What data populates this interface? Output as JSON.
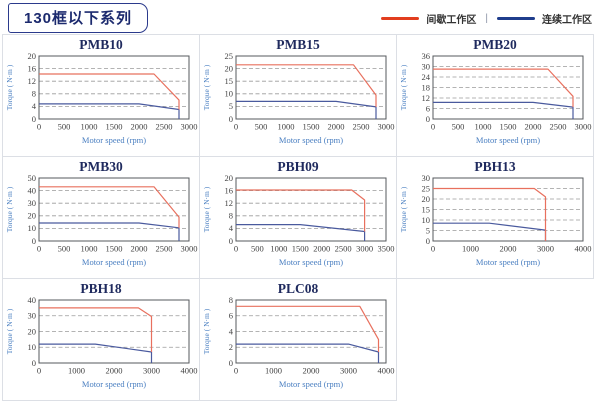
{
  "header": {
    "title": "130框以下系列",
    "legend": {
      "intermittent": "间歇工作区",
      "separator": "|",
      "continuous": "连续工作区"
    }
  },
  "colors": {
    "legend_intermittent": "#e23d1e",
    "legend_continuous": "#1f3d8c",
    "line_intermittent": "#e8705e",
    "line_continuous": "#4a5a9e",
    "axis_label": "#4a7fc1",
    "tick_text": "#444444",
    "grid_line": "#9a9a9a",
    "plot_border": "#55585c",
    "panel_border": "#dcdfe5",
    "title_navy": "#1f2a5e"
  },
  "chart_data": [
    {
      "type": "line",
      "title": "PMB10",
      "xlabel": "Motor speed (rpm)",
      "ylabel": "Torque ( N·m )",
      "xlim": [
        0,
        3000
      ],
      "xtick_step": 500,
      "ylim": [
        0,
        20
      ],
      "ytick_step": 4,
      "grid": "dashed-horizontal",
      "legend_position": "none",
      "series": [
        {
          "name": "间歇工作区",
          "color_key": "line_intermittent",
          "points": [
            [
              0,
              14.3
            ],
            [
              2300,
              14.3
            ],
            [
              2800,
              6
            ],
            [
              2800,
              3
            ]
          ]
        },
        {
          "name": "连续工作区",
          "color_key": "line_continuous",
          "points": [
            [
              0,
              4.8
            ],
            [
              2000,
              4.8
            ],
            [
              2800,
              3
            ],
            [
              2800,
              0
            ]
          ]
        }
      ]
    },
    {
      "type": "line",
      "title": "PMB15",
      "xlabel": "Motor speed (rpm)",
      "ylabel": "Torque ( N·m )",
      "xlim": [
        0,
        3000
      ],
      "xtick_step": 500,
      "ylim": [
        0,
        25
      ],
      "ytick_step": 5,
      "grid": "dashed-horizontal",
      "legend_position": "none",
      "series": [
        {
          "name": "间歇工作区",
          "color_key": "line_intermittent",
          "points": [
            [
              0,
              21.5
            ],
            [
              2350,
              21.5
            ],
            [
              2800,
              9.5
            ],
            [
              2800,
              4.8
            ]
          ]
        },
        {
          "name": "连续工作区",
          "color_key": "line_continuous",
          "points": [
            [
              0,
              7
            ],
            [
              2000,
              7
            ],
            [
              2800,
              4.8
            ],
            [
              2800,
              0
            ]
          ]
        }
      ]
    },
    {
      "type": "line",
      "title": "PMB20",
      "xlabel": "Motor speed (rpm)",
      "ylabel": "Torque ( N·m )",
      "xlim": [
        0,
        3000
      ],
      "xtick_step": 500,
      "ylim": [
        0,
        36
      ],
      "ytick_step": 6,
      "grid": "dashed-horizontal",
      "legend_position": "none",
      "series": [
        {
          "name": "间歇工作区",
          "color_key": "line_intermittent",
          "points": [
            [
              0,
              28.5
            ],
            [
              2300,
              28.5
            ],
            [
              2800,
              13
            ],
            [
              2800,
              6.8
            ]
          ]
        },
        {
          "name": "连续工作区",
          "color_key": "line_continuous",
          "points": [
            [
              0,
              9.5
            ],
            [
              2000,
              9.5
            ],
            [
              2800,
              6.8
            ],
            [
              2800,
              0
            ]
          ]
        }
      ]
    },
    {
      "type": "line",
      "title": "PMB30",
      "xlabel": "Motor speed (rpm)",
      "ylabel": "Torque ( N·m )",
      "xlim": [
        0,
        3000
      ],
      "xtick_step": 500,
      "ylim": [
        0,
        50
      ],
      "ytick_step": 10,
      "grid": "dashed-horizontal",
      "legend_position": "none",
      "series": [
        {
          "name": "间歇工作区",
          "color_key": "line_intermittent",
          "points": [
            [
              0,
              43
            ],
            [
              2300,
              43
            ],
            [
              2800,
              19
            ],
            [
              2800,
              10.5
            ]
          ]
        },
        {
          "name": "连续工作区",
          "color_key": "line_continuous",
          "points": [
            [
              0,
              14.3
            ],
            [
              2000,
              14.3
            ],
            [
              2800,
              10.5
            ],
            [
              2800,
              0
            ]
          ]
        }
      ]
    },
    {
      "type": "line",
      "title": "PBH09",
      "xlabel": "Motor speed (rpm)",
      "ylabel": "Torque ( N·m )",
      "xlim": [
        0,
        3500
      ],
      "xtick_step": 500,
      "ylim": [
        0,
        20
      ],
      "ytick_step": 4,
      "grid": "dashed-horizontal",
      "legend_position": "none",
      "series": [
        {
          "name": "间歇工作区",
          "color_key": "line_intermittent",
          "points": [
            [
              0,
              16.2
            ],
            [
              2700,
              16.2
            ],
            [
              3000,
              13
            ],
            [
              3000,
              3
            ]
          ]
        },
        {
          "name": "连续工作区",
          "color_key": "line_continuous",
          "points": [
            [
              0,
              5.2
            ],
            [
              1500,
              5.2
            ],
            [
              3000,
              3
            ],
            [
              3000,
              0
            ]
          ]
        }
      ]
    },
    {
      "type": "line",
      "title": "PBH13",
      "xlabel": "Motor speed (rpm)",
      "ylabel": "Torque ( N·m )",
      "xlim": [
        0,
        4000
      ],
      "xtick_step": 1000,
      "ylim": [
        0,
        30
      ],
      "ytick_step": 5,
      "grid": "dashed-horizontal",
      "legend_position": "none",
      "series": [
        {
          "name": "间歇工作区",
          "color_key": "line_intermittent",
          "points": [
            [
              0,
              25
            ],
            [
              2700,
              25
            ],
            [
              3000,
              21
            ],
            [
              3000,
              0
            ]
          ]
        },
        {
          "name": "连续工作区",
          "color_key": "line_continuous",
          "points": [
            [
              0,
              8.5
            ],
            [
              1500,
              8.5
            ],
            [
              3000,
              5.2
            ],
            [
              3000,
              0
            ]
          ]
        }
      ]
    },
    {
      "type": "line",
      "title": "PBH18",
      "xlabel": "Motor speed (rpm)",
      "ylabel": "Torque ( N·m )",
      "xlim": [
        0,
        4000
      ],
      "xtick_step": 1000,
      "ylim": [
        0,
        40
      ],
      "ytick_step": 10,
      "grid": "dashed-horizontal",
      "legend_position": "none",
      "series": [
        {
          "name": "间歇工作区",
          "color_key": "line_intermittent",
          "points": [
            [
              0,
              35
            ],
            [
              2650,
              35
            ],
            [
              3000,
              29.5
            ],
            [
              3000,
              7
            ]
          ]
        },
        {
          "name": "连续工作区",
          "color_key": "line_continuous",
          "points": [
            [
              0,
              12
            ],
            [
              1500,
              12
            ],
            [
              3000,
              7
            ],
            [
              3000,
              0
            ]
          ]
        }
      ]
    },
    {
      "type": "line",
      "title": "PLC08",
      "xlabel": "Motor speed (rpm)",
      "ylabel": "Torque ( N·m )",
      "xlim": [
        0,
        4000
      ],
      "xtick_step": 1000,
      "ylim": [
        0,
        8
      ],
      "ytick_step": 2,
      "grid": "dashed-horizontal",
      "legend_position": "none",
      "series": [
        {
          "name": "间歇工作区",
          "color_key": "line_intermittent",
          "points": [
            [
              0,
              7.2
            ],
            [
              3300,
              7.2
            ],
            [
              3800,
              3
            ],
            [
              3800,
              1.4
            ]
          ]
        },
        {
          "name": "连续工作区",
          "color_key": "line_continuous",
          "points": [
            [
              0,
              2.4
            ],
            [
              3000,
              2.4
            ],
            [
              3800,
              1.4
            ],
            [
              3800,
              0
            ]
          ]
        }
      ]
    }
  ]
}
